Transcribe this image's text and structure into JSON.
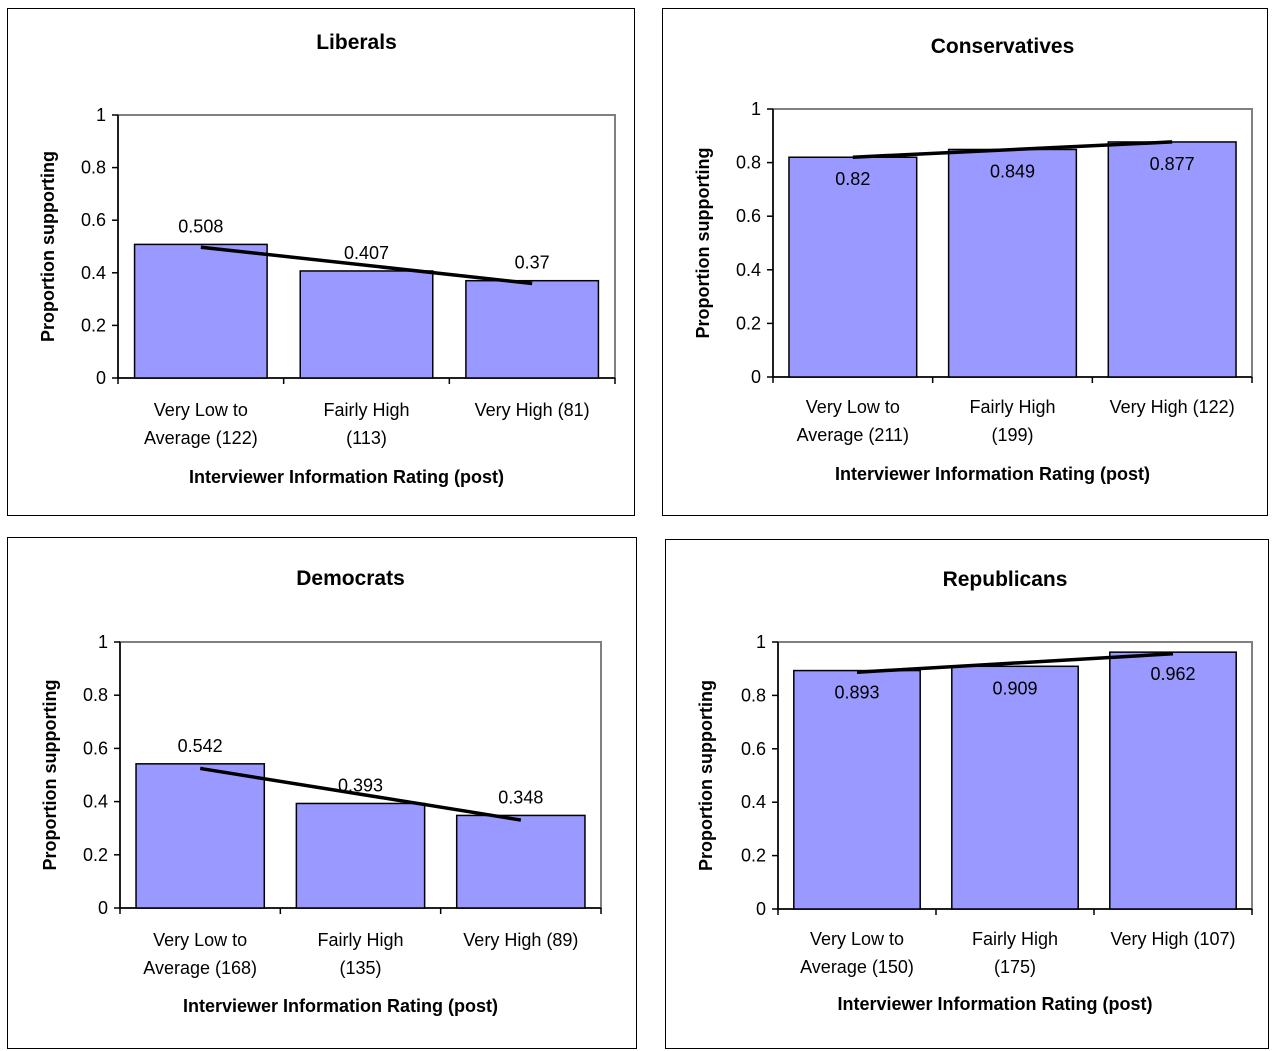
{
  "chart_data": [
    {
      "type": "bar",
      "title": "Liberals",
      "xlabel": "Interviewer Information Rating (post)",
      "ylabel": "Proportion supporting",
      "ylim": [
        0,
        1
      ],
      "yticks": [
        "0",
        "0.2",
        "0.4",
        "0.6",
        "0.8",
        "1"
      ],
      "categories": [
        [
          "Very Low to",
          "Average (122)"
        ],
        [
          "Fairly High",
          "(113)"
        ],
        [
          "Very High (81)"
        ]
      ],
      "values": [
        0.508,
        0.407,
        0.37
      ],
      "value_labels": [
        "0.508",
        "0.407",
        "0.37"
      ],
      "label_position": "above",
      "trendline": true,
      "bar_color": "#9999ff"
    },
    {
      "type": "bar",
      "title": "Conservatives",
      "xlabel": "Interviewer Information Rating (post)",
      "ylabel": "Proportion supporting",
      "ylim": [
        0,
        1
      ],
      "yticks": [
        "0",
        "0.2",
        "0.4",
        "0.6",
        "0.8",
        "1"
      ],
      "categories": [
        [
          "Very Low to",
          "Average (211)"
        ],
        [
          "Fairly High",
          "(199)"
        ],
        [
          "Very High (122)"
        ]
      ],
      "values": [
        0.82,
        0.849,
        0.877
      ],
      "value_labels": [
        "0.82",
        "0.849",
        "0.877"
      ],
      "label_position": "inside",
      "trendline": true,
      "bar_color": "#9999ff"
    },
    {
      "type": "bar",
      "title": "Democrats",
      "xlabel": "Interviewer Information Rating (post)",
      "ylabel": "Proportion supporting",
      "ylim": [
        0,
        1
      ],
      "yticks": [
        "0",
        "0.2",
        "0.4",
        "0.6",
        "0.8",
        "1"
      ],
      "categories": [
        [
          "Very Low to",
          "Average (168)"
        ],
        [
          "Fairly High",
          "(135)"
        ],
        [
          "Very High (89)"
        ]
      ],
      "values": [
        0.542,
        0.393,
        0.348
      ],
      "value_labels": [
        "0.542",
        "0.393",
        "0.348"
      ],
      "label_position": "above",
      "trendline": true,
      "bar_color": "#9999ff"
    },
    {
      "type": "bar",
      "title": "Republicans",
      "xlabel": "Interviewer Information Rating (post)",
      "ylabel": "Proportion supporting",
      "ylim": [
        0,
        1
      ],
      "yticks": [
        "0",
        "0.2",
        "0.4",
        "0.6",
        "0.8",
        "1"
      ],
      "categories": [
        [
          "Very Low to",
          "Average (150)"
        ],
        [
          "Fairly High",
          "(175)"
        ],
        [
          "Very High (107)"
        ]
      ],
      "values": [
        0.893,
        0.909,
        0.962
      ],
      "value_labels": [
        "0.893",
        "0.909",
        "0.962"
      ],
      "label_position": "inside",
      "trendline": true,
      "bar_color": "#9999ff"
    }
  ]
}
